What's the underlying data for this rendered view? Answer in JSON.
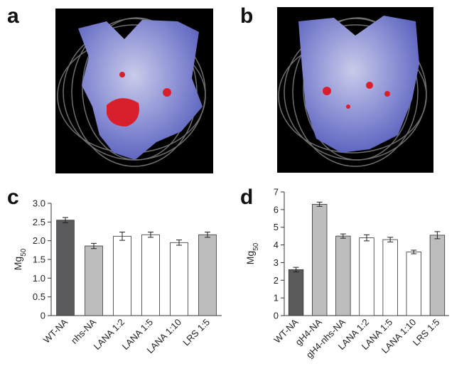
{
  "panels": [
    {
      "label": "a"
    },
    {
      "label": "b"
    }
  ],
  "chart_data": [
    {
      "type": "bar",
      "panel_label": "c",
      "y_label": "Mg",
      "y_label_sub": "50",
      "categories": [
        "WT-NA",
        "nhs-NA",
        "LANA 1:2",
        "LANA 1:5",
        "LANA 1:10",
        "LRS 1:5"
      ],
      "values": [
        2.55,
        1.86,
        2.12,
        2.16,
        1.95,
        2.16
      ],
      "errors": [
        0.07,
        0.07,
        0.11,
        0.07,
        0.07,
        0.07
      ],
      "colors": [
        "#5a5a5c",
        "#bdbdbd",
        "#ffffff",
        "#ffffff",
        "#ffffff",
        "#bdbdbd"
      ],
      "ylim": [
        0,
        3.0
      ],
      "yticks": [
        0,
        0.5,
        {
          "value": 1,
          "label": "1.0"
        },
        1.5,
        {
          "value": 2,
          "label": "2.0"
        },
        2.5,
        {
          "value": 3,
          "label": "3.0"
        }
      ]
    },
    {
      "type": "bar",
      "panel_label": "d",
      "y_label": "Mg",
      "y_label_sub": "50",
      "categories": [
        "WT-NA",
        "gH4-NA",
        "gH4-nhs-NA",
        "LANA 1:2",
        "LANA 1:5",
        "LANA 1:10",
        "LRS 1:5"
      ],
      "values": [
        2.6,
        6.3,
        4.5,
        4.4,
        4.3,
        3.6,
        4.55
      ],
      "errors": [
        0.13,
        0.12,
        0.12,
        0.17,
        0.13,
        0.1,
        0.2
      ],
      "colors": [
        "#5a5a5c",
        "#bdbdbd",
        "#bdbdbd",
        "#ffffff",
        "#ffffff",
        "#ffffff",
        "#bdbdbd"
      ],
      "ylim": [
        0,
        7
      ],
      "yticks": [
        0,
        1,
        2,
        3,
        4,
        5,
        6,
        7
      ]
    }
  ]
}
